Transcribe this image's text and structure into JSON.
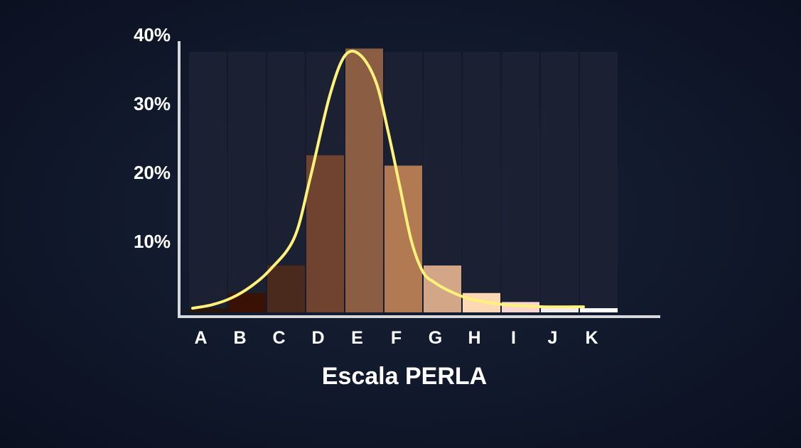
{
  "chart_data": {
    "type": "bar",
    "title": "",
    "xlabel": "Escala PERLA",
    "ylabel": "",
    "categories": [
      "A",
      "B",
      "C",
      "D",
      "E",
      "F",
      "G",
      "H",
      "I",
      "J",
      "K"
    ],
    "values": [
      0.3,
      2.5,
      6.5,
      22.5,
      38,
      21,
      6.5,
      2.5,
      1.2,
      0.6,
      0.3
    ],
    "bar_colors": [
      "#2a1608",
      "#3a1205",
      "#4a2a1c",
      "#6f4330",
      "#8b5e44",
      "#b17a53",
      "#d3a687",
      "#fcd8b4",
      "#f9d6d0",
      "#f2eeee",
      "#ffffff"
    ],
    "fit_curve": {
      "x": [
        0,
        0.5,
        1,
        1.5,
        2,
        2.6,
        3,
        3.5,
        3.9,
        4.3,
        4.7,
        5,
        5.3,
        5.6,
        5.9,
        6.2,
        6.5,
        7,
        7.5,
        8,
        9,
        10
      ],
      "y": [
        0.3,
        0.8,
        1.8,
        3.5,
        6,
        10.5,
        19,
        31,
        37,
        37,
        33,
        26,
        18,
        10,
        5.5,
        4,
        3,
        1.8,
        1.2,
        0.8,
        0.5,
        0.5
      ],
      "color": "#fff27a"
    },
    "ylim": [
      -1,
      40
    ],
    "yticks": [
      10,
      20,
      30,
      40
    ],
    "ytick_labels": [
      "10%",
      "20%",
      "30%",
      "40%"
    ],
    "grid": false,
    "legend": "none"
  }
}
